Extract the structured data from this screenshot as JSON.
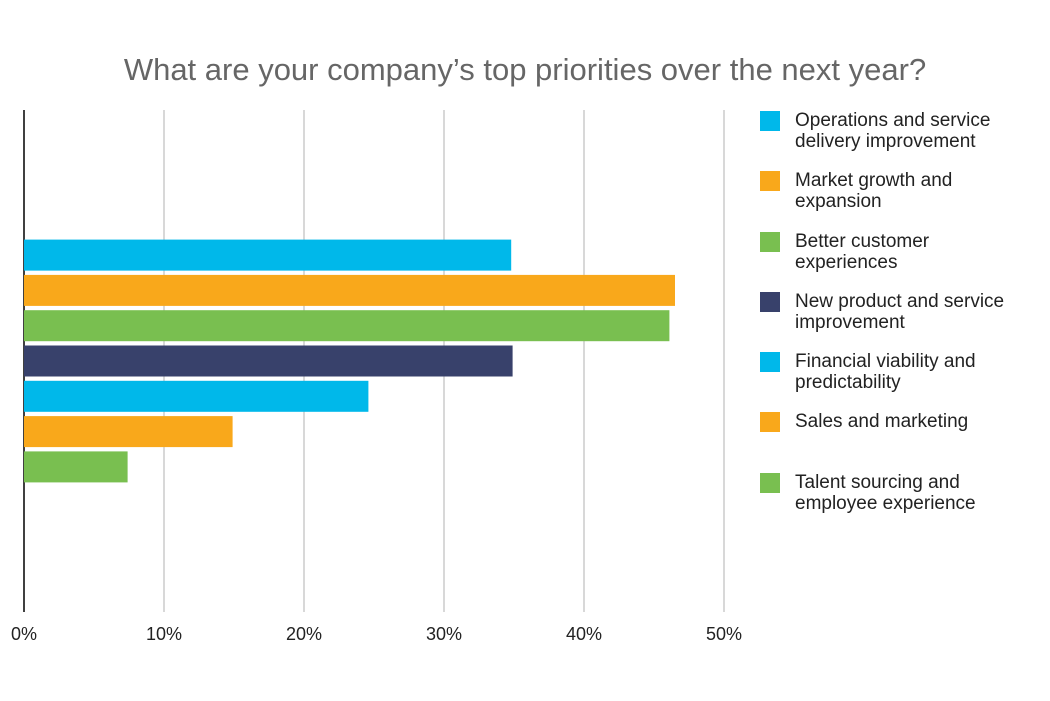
{
  "chart_data": {
    "type": "bar",
    "orientation": "horizontal",
    "title": "What are your company’s top priorities over the next year?",
    "categories": [
      null
    ],
    "series": [
      {
        "name": "Operations and service delivery improvement",
        "color": "#00b8ea",
        "values": [
          34.8
        ]
      },
      {
        "name": "Market growth and expansion",
        "color": "#f9a81b",
        "values": [
          46.5
        ]
      },
      {
        "name": "Better customer experiences",
        "color": "#79bf50",
        "values": [
          46.1
        ]
      },
      {
        "name": "New product and service improvement",
        "color": "#38416b",
        "values": [
          34.9
        ]
      },
      {
        "name": "Financial viability and predictability",
        "color": "#00b8ea",
        "values": [
          24.6
        ]
      },
      {
        "name": "Sales and marketing",
        "color": "#f9a81b",
        "values": [
          14.9
        ]
      },
      {
        "name": "Talent sourcing and employee experience",
        "color": "#79bf50",
        "values": [
          7.4
        ]
      }
    ],
    "xlim": [
      0,
      50
    ],
    "xticks": [
      {
        "value": 0,
        "label": "0%"
      },
      {
        "value": 10,
        "label": "10%"
      },
      {
        "value": 20,
        "label": "20%"
      },
      {
        "value": 30,
        "label": "30%"
      },
      {
        "value": 40,
        "label": "40%"
      },
      {
        "value": 50,
        "label": "50%"
      }
    ],
    "grid": true,
    "legend": "right"
  }
}
